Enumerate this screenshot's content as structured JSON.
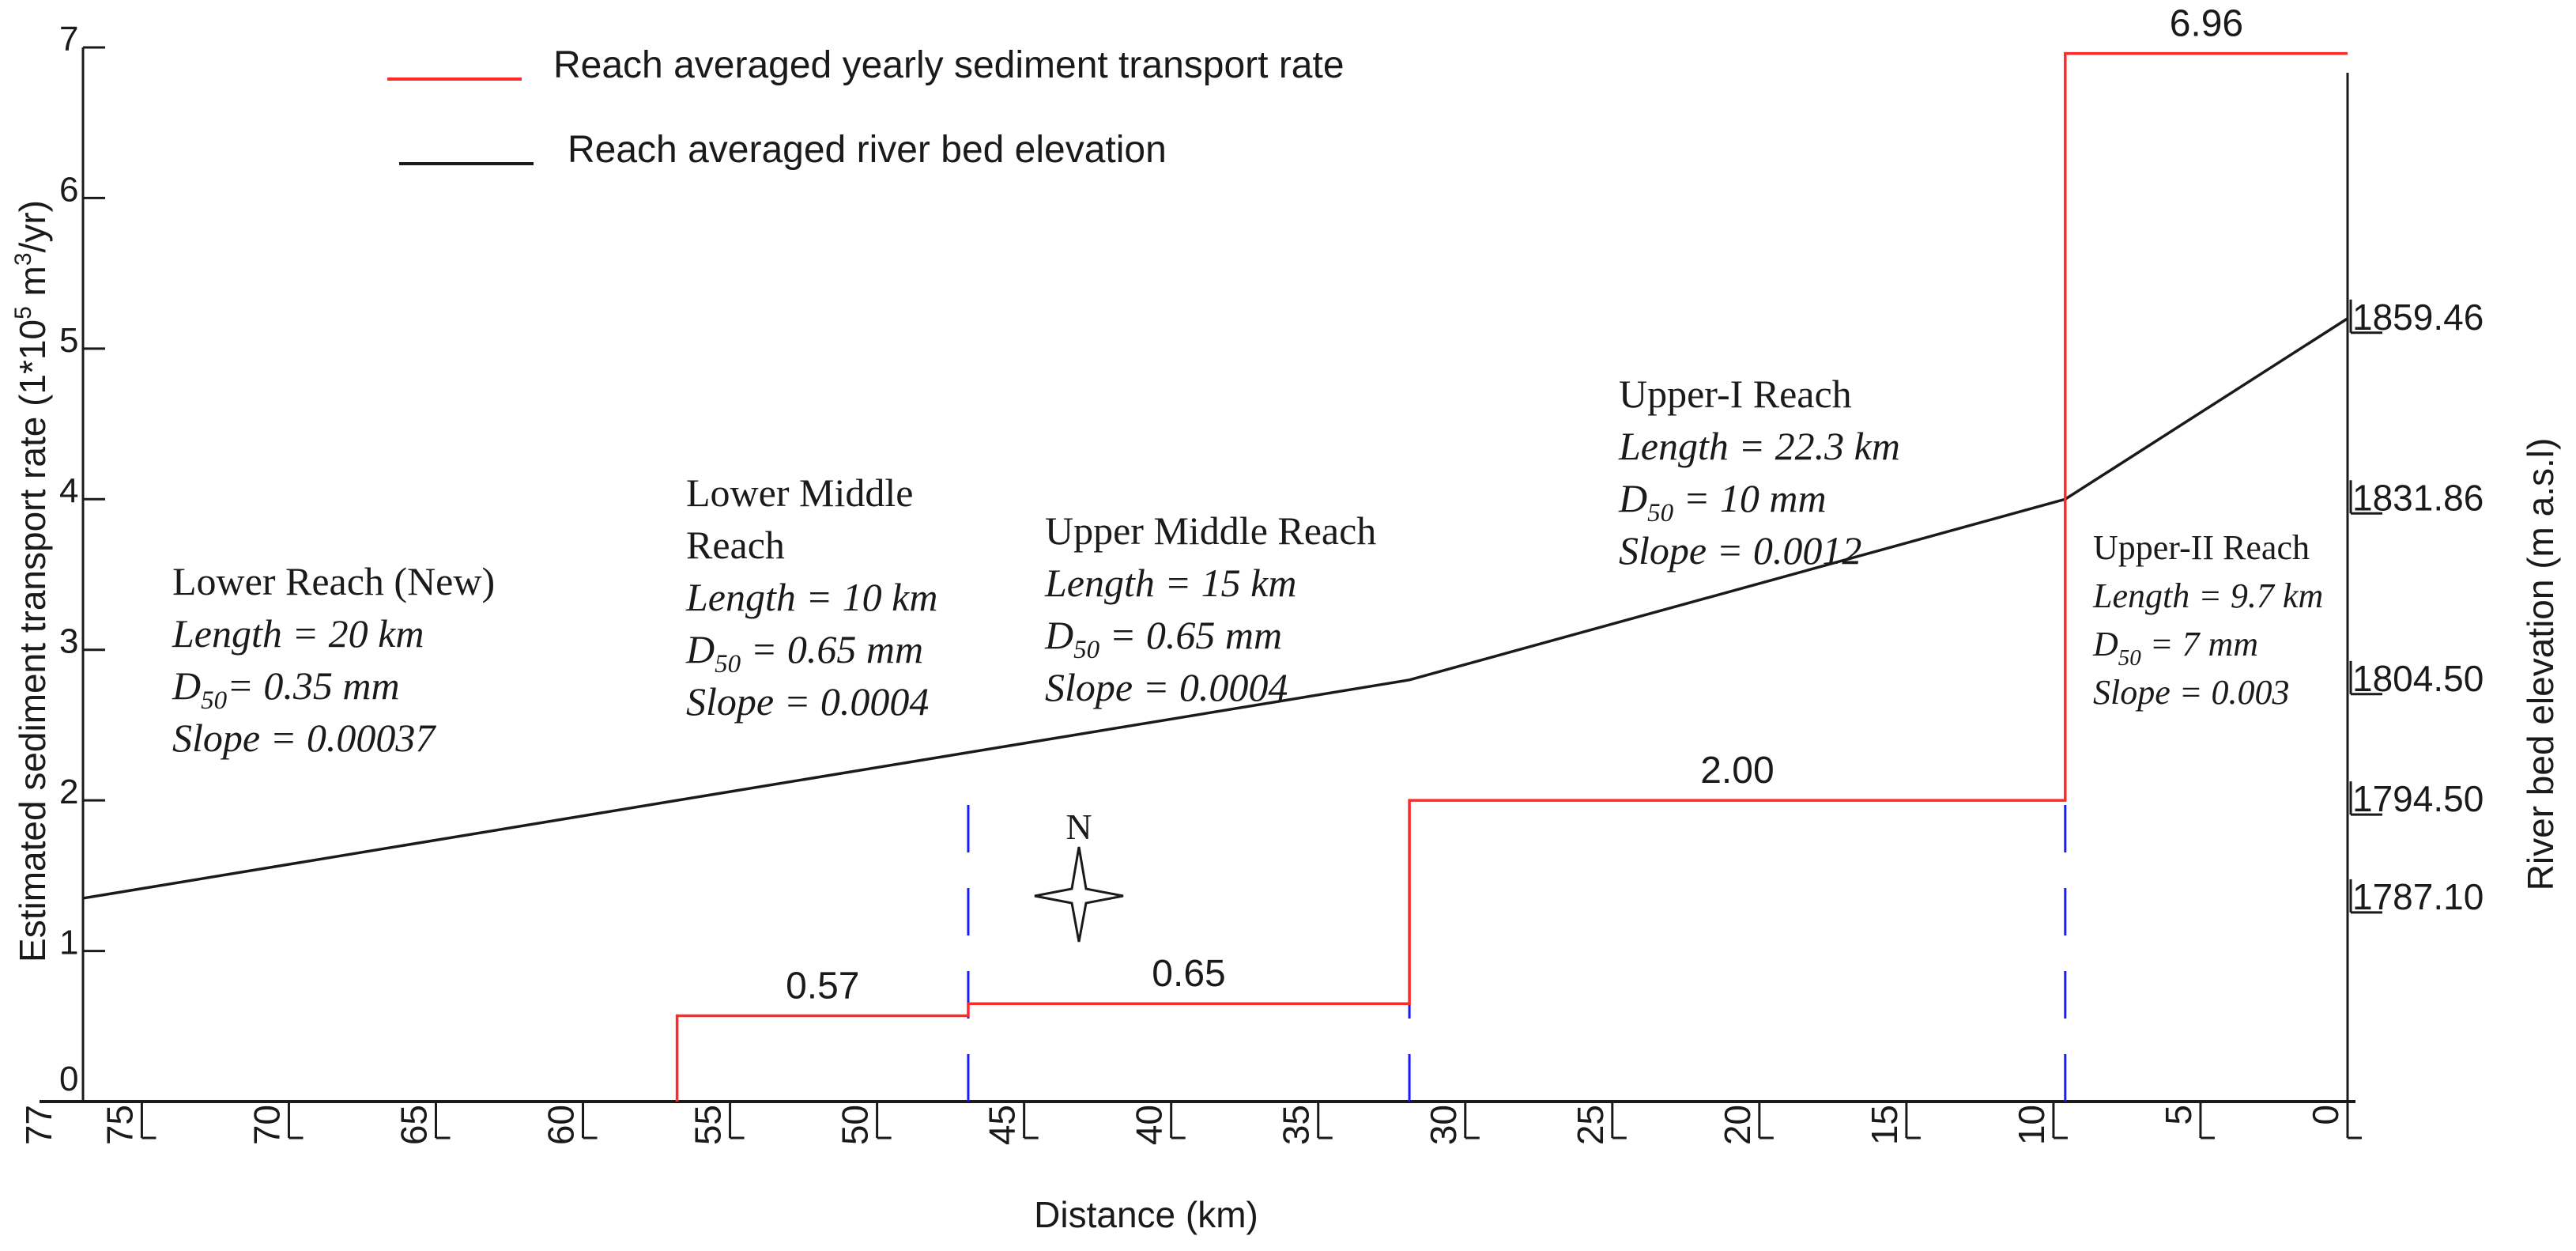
{
  "chart_data": {
    "type": "line",
    "xlabel": "Distance (km)",
    "ylabel_left": "Estimated sediment transport rate (1*10",
    "ylabel_left_sup": "5",
    "ylabel_left_unit": " m",
    "ylabel_left_unit_sup": "3",
    "ylabel_left_tail": "/yr)",
    "ylabel_right": "River bed elevation (m a.s.l)",
    "x_reversed": true,
    "xlim": [
      77,
      0
    ],
    "x_ticks": [
      {
        "value": 77,
        "label": "77"
      },
      {
        "value": 75,
        "label": "75"
      },
      {
        "value": 70,
        "label": "70"
      },
      {
        "value": 65,
        "label": "65"
      },
      {
        "value": 60,
        "label": "60"
      },
      {
        "value": 55,
        "label": "55"
      },
      {
        "value": 50,
        "label": "50"
      },
      {
        "value": 45,
        "label": "45"
      },
      {
        "value": 40,
        "label": "40"
      },
      {
        "value": 35,
        "label": "35"
      },
      {
        "value": 30,
        "label": "30"
      },
      {
        "value": 25,
        "label": "25"
      },
      {
        "value": 20,
        "label": "20"
      },
      {
        "value": 15,
        "label": "15"
      },
      {
        "value": 10,
        "label": "10"
      },
      {
        "value": 5,
        "label": "5"
      },
      {
        "value": 0,
        "label": "0"
      }
    ],
    "ylim_left": [
      0,
      7
    ],
    "y_ticks_left": [
      "0",
      "1",
      "2",
      "3",
      "4",
      "5",
      "6",
      "7"
    ],
    "right_axis_labels": [
      {
        "label": "1859.46",
        "level": 5.2
      },
      {
        "label": "1831.86",
        "level": 4.0
      },
      {
        "label": "1804.50",
        "level": 2.8
      },
      {
        "label": "1794.50",
        "level": 2.0
      },
      {
        "label": "1787.10",
        "level": 1.35
      }
    ],
    "legend": [
      {
        "label": "Reach averaged yearly sediment transport rate",
        "color": "#ff2a2a"
      },
      {
        "label": "Reach averaged river bed elevation",
        "color": "#1a1a1a"
      }
    ],
    "series": [
      {
        "name": "Reach averaged yearly sediment transport rate",
        "color": "#ff2a2a",
        "steps": [
          {
            "x_start": 56.8,
            "x_end": 46.9,
            "value": 0.57,
            "label": "0.57"
          },
          {
            "x_start": 46.9,
            "x_end": 31.9,
            "value": 0.65,
            "label": "0.65"
          },
          {
            "x_start": 31.9,
            "x_end": 9.6,
            "value": 2.0,
            "label": "2.00"
          },
          {
            "x_start": 9.6,
            "x_end": 0,
            "value": 6.96,
            "label": "6.96"
          }
        ]
      },
      {
        "name": "Reach averaged river bed elevation",
        "color": "#1a1a1a",
        "x": [
          77,
          56.8,
          31.9,
          9.6,
          0
        ],
        "y": [
          1787.1,
          1794.5,
          1804.5,
          1831.86,
          1859.46
        ]
      }
    ],
    "reach_boundaries": [
      46.9,
      31.9,
      9.6
    ],
    "boundary_color": "#1a1aff",
    "annotations": [
      {
        "id": "lower",
        "lines": [
          {
            "plain": "Lower Reach (New)"
          },
          {
            "italic": "Length = 20 km"
          },
          {
            "italic": "D",
            "sub": "50",
            "rest": "= 0.35 mm"
          },
          {
            "italic": "Slope = 0.00037"
          }
        ]
      },
      {
        "id": "lower-middle",
        "lines": [
          {
            "plain": "Lower Middle"
          },
          {
            "plain": "Reach"
          },
          {
            "italic": "Length = 10 km"
          },
          {
            "italic": "D",
            "sub": "50",
            "rest": " = 0.65 mm"
          },
          {
            "italic": "Slope = 0.0004"
          }
        ]
      },
      {
        "id": "upper-middle",
        "lines": [
          {
            "plain": "Upper Middle Reach"
          },
          {
            "italic": "Length = 15 km"
          },
          {
            "italic": "D",
            "sub": "50",
            "rest": " = 0.65 mm"
          },
          {
            "italic": "Slope = 0.0004"
          }
        ]
      },
      {
        "id": "upper-i",
        "lines": [
          {
            "plain": "Upper-I Reach"
          },
          {
            "italic": "Length = 22.3 km"
          },
          {
            "italic": "D",
            "sub": "50",
            "rest": " = 10 mm"
          },
          {
            "italic": "Slope = 0.0012"
          }
        ]
      },
      {
        "id": "upper-ii",
        "lines": [
          {
            "plain": "Upper-II Reach"
          },
          {
            "italic": "Length = 9.7 km"
          },
          {
            "italic": "D",
            "sub": "50",
            "rest": " = 7 mm"
          },
          {
            "italic": "Slope = 0.003"
          }
        ]
      }
    ],
    "north_label": "N"
  }
}
